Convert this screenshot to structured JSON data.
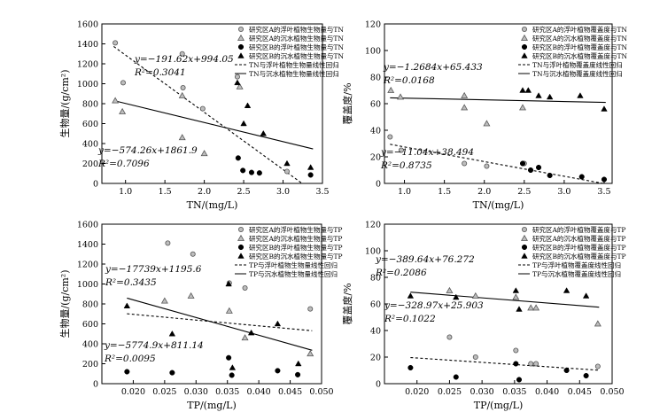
{
  "chart_data": [
    {
      "type": "scatter",
      "xlabel": "TN/(mg/L)",
      "ylabel": "生物量/(g/cm²)",
      "xlim": [
        0.7,
        3.5
      ],
      "ylim": [
        0,
        1600
      ],
      "xticks": [
        1.0,
        1.5,
        2.0,
        2.5,
        3.0,
        3.5
      ],
      "xtick_labels": [
        "1.0",
        "1.5",
        "2.0",
        "2.5",
        "3.0",
        "3.5"
      ],
      "yticks": [
        0,
        200,
        400,
        600,
        800,
        1000,
        1200,
        1400,
        1600
      ],
      "ytick_labels": [
        "0",
        "200",
        "400",
        "600",
        "800",
        "1000",
        "1200",
        "1400",
        "1600"
      ],
      "legend_position": "top-right",
      "series": [
        {
          "name": "研究区A的浮叶植物生物量与TN",
          "marker": "circle-gray",
          "x": [
            0.87,
            0.97,
            1.72,
            1.73,
            1.98,
            2.42,
            3.05
          ],
          "y": [
            1410,
            1010,
            1300,
            960,
            750,
            1070,
            120
          ]
        },
        {
          "name": "研究区A的沉水植物生物量与TN",
          "marker": "triangle-gray",
          "x": [
            0.87,
            0.96,
            1.72,
            1.72,
            2.0,
            2.45
          ],
          "y": [
            830,
            720,
            880,
            460,
            300,
            970
          ]
        },
        {
          "name": "研究区B的浮叶植物生物量与TN",
          "marker": "circle-black",
          "x": [
            2.43,
            2.49,
            2.6,
            2.7,
            3.35
          ],
          "y": [
            255,
            130,
            110,
            105,
            85
          ]
        },
        {
          "name": "研究区B的沉水植物生物量与TN",
          "marker": "triangle-black",
          "x": [
            2.42,
            2.5,
            2.55,
            2.75,
            3.05,
            3.35
          ],
          "y": [
            1010,
            600,
            780,
            500,
            200,
            160
          ]
        }
      ],
      "fits": [
        {
          "name": "TN与浮叶植物生物量线性回归",
          "style": "dashed",
          "slope": -574.26,
          "intercept": 1861.9,
          "x_range": [
            0.85,
            3.28
          ],
          "equation": "y=−574.26x+1861.9",
          "r2": "R²=0.7096"
        },
        {
          "name": "TN与沉水植物生物量线性回归",
          "style": "solid",
          "slope": -191.62,
          "intercept": 994.05,
          "x_range": [
            0.85,
            3.38
          ],
          "equation": "y=−191.62x+994.05",
          "r2": "R²=0.3041"
        }
      ]
    },
    {
      "type": "scatter",
      "xlabel": "TN/(mg/L)",
      "ylabel": "覆盖度/%",
      "xlim": [
        0.75,
        3.6
      ],
      "ylim": [
        0,
        120
      ],
      "xticks": [
        1.0,
        1.5,
        2.0,
        2.5,
        3.0,
        3.5
      ],
      "xtick_labels": [
        "1.0",
        "1.5",
        "2.0",
        "2.5",
        "3.0",
        "3.5"
      ],
      "yticks": [
        0,
        20,
        40,
        60,
        80,
        100,
        120
      ],
      "ytick_labels": [
        "0",
        "20",
        "40",
        "60",
        "80",
        "100",
        "120"
      ],
      "legend_position": "top-right",
      "series": [
        {
          "name": "研究区A的浮叶植物覆盖度与TN",
          "marker": "circle-gray",
          "x": [
            0.82,
            0.96,
            1.75,
            2.03,
            2.5
          ],
          "y": [
            35,
            25,
            15,
            13,
            15
          ]
        },
        {
          "name": "研究区A的沉水植物覆盖度与TN",
          "marker": "triangle-gray",
          "x": [
            0.83,
            0.95,
            1.75,
            1.75,
            2.03,
            2.48
          ],
          "y": [
            70,
            65,
            66,
            57,
            45,
            57
          ]
        },
        {
          "name": "研究区B的浮叶植物覆盖度与TN",
          "marker": "circle-black",
          "x": [
            2.48,
            2.58,
            2.68,
            2.82,
            3.22,
            3.5
          ],
          "y": [
            15,
            10,
            12,
            6,
            5,
            3
          ]
        },
        {
          "name": "研究区B的沉水植物覆盖度与TN",
          "marker": "triangle-black",
          "x": [
            2.48,
            2.55,
            2.68,
            2.82,
            3.2,
            3.5
          ],
          "y": [
            70,
            70,
            66,
            65,
            66,
            56
          ]
        }
      ],
      "fits": [
        {
          "name": "TN与浮叶植物覆盖度线性回归",
          "style": "dashed",
          "slope": -11.04,
          "intercept": 38.494,
          "x_range": [
            0.82,
            3.52
          ],
          "equation": "y=−11.04x+38.494",
          "r2": "R²=0.8735"
        },
        {
          "name": "TN与沉水植物覆盖度线性回归",
          "style": "solid",
          "slope": -1.2684,
          "intercept": 65.433,
          "x_range": [
            0.82,
            3.52
          ],
          "equation": "y=−1.2684x+65.433",
          "r2": "R²=0.0168"
        }
      ]
    },
    {
      "type": "scatter",
      "xlabel": "TP/(mg/L)",
      "ylabel": "生物量/(g/cm²)",
      "xlim": [
        0.015,
        0.05
      ],
      "ylim": [
        0,
        1600
      ],
      "xticks": [
        0.02,
        0.025,
        0.03,
        0.035,
        0.04,
        0.045,
        0.05
      ],
      "xtick_labels": [
        "0.020",
        "0.025",
        "0.030",
        "0.035",
        "0.040",
        "0.045",
        "0.050"
      ],
      "yticks": [
        0,
        200,
        400,
        600,
        800,
        1000,
        1200,
        1400,
        1600
      ],
      "ytick_labels": [
        "0",
        "200",
        "400",
        "600",
        "800",
        "1000",
        "1200",
        "1400",
        "1600"
      ],
      "legend_position": "top-right",
      "series": [
        {
          "name": "研究区A的浮叶植物生物量与TP",
          "marker": "circle-gray",
          "x": [
            0.0255,
            0.0295,
            0.0353,
            0.0378,
            0.0482
          ],
          "y": [
            1410,
            1300,
            1010,
            960,
            750
          ]
        },
        {
          "name": "研究区A的沉水植物生物量与TP",
          "marker": "triangle-gray",
          "x": [
            0.025,
            0.0292,
            0.0353,
            0.0378,
            0.0482
          ],
          "y": [
            830,
            880,
            730,
            460,
            300
          ]
        },
        {
          "name": "研究区B的浮叶植物生物量与TP",
          "marker": "circle-black",
          "x": [
            0.019,
            0.0262,
            0.0352,
            0.0357,
            0.043,
            0.0462
          ],
          "y": [
            120,
            110,
            260,
            85,
            130,
            90
          ]
        },
        {
          "name": "研究区B的沉水植物生物量与TP",
          "marker": "triangle-black",
          "x": [
            0.019,
            0.0262,
            0.0352,
            0.0358,
            0.0388,
            0.043,
            0.0463
          ],
          "y": [
            780,
            500,
            1000,
            160,
            510,
            600,
            200
          ]
        }
      ],
      "fits": [
        {
          "name": "TP与浮叶植物生物量线性回归",
          "style": "dashed",
          "slope": -5774.9,
          "intercept": 811.14,
          "x_range": [
            0.019,
            0.0485
          ],
          "equation": "y=−5774.9x+811.14",
          "r2": "R²=0.0095"
        },
        {
          "name": "TP与沉水植物生物量线性回归",
          "style": "solid",
          "slope": -17739,
          "intercept": 1195.6,
          "x_range": [
            0.019,
            0.0485
          ],
          "equation": "y=−17739x+1195.6",
          "r2": "R²=0.3435"
        }
      ]
    },
    {
      "type": "scatter",
      "xlabel": "TP/(mg/L)",
      "ylabel": "覆盖度/%",
      "xlim": [
        0.015,
        0.05
      ],
      "ylim": [
        0,
        120
      ],
      "xticks": [
        0.02,
        0.025,
        0.03,
        0.035,
        0.04,
        0.045,
        0.05
      ],
      "xtick_labels": [
        "0.020",
        "0.025",
        "0.030",
        "0.035",
        "0.040",
        "0.045",
        "0.050"
      ],
      "yticks": [
        0,
        20,
        40,
        60,
        80,
        100,
        120
      ],
      "ytick_labels": [
        "0",
        "20",
        "40",
        "60",
        "80",
        "100",
        "120"
      ],
      "legend_position": "top-right",
      "series": [
        {
          "name": "研究区A的浮叶植物覆盖度与TP",
          "marker": "circle-gray",
          "x": [
            0.025,
            0.029,
            0.0352,
            0.0375,
            0.0383,
            0.0478
          ],
          "y": [
            35,
            20,
            25,
            15,
            15,
            13
          ]
        },
        {
          "name": "研究区A的沉水植物覆盖度与TP",
          "marker": "triangle-gray",
          "x": [
            0.025,
            0.029,
            0.0352,
            0.0375,
            0.0383,
            0.0478
          ],
          "y": [
            70,
            66,
            65,
            57,
            57,
            45
          ]
        },
        {
          "name": "研究区B的浮叶植物覆盖度与TP",
          "marker": "circle-black",
          "x": [
            0.019,
            0.026,
            0.0352,
            0.0357,
            0.043,
            0.046
          ],
          "y": [
            12,
            5,
            15,
            3,
            10,
            6
          ]
        },
        {
          "name": "研究区B的沉水植物覆盖度与TP",
          "marker": "triangle-black",
          "x": [
            0.019,
            0.026,
            0.0352,
            0.0357,
            0.043,
            0.046
          ],
          "y": [
            66,
            65,
            70,
            56,
            70,
            66
          ]
        }
      ],
      "fits": [
        {
          "name": "TP与浮叶植物覆盖度线性回归",
          "style": "dashed",
          "slope": -328.97,
          "intercept": 25.903,
          "x_range": [
            0.019,
            0.048
          ],
          "equation": "y=−328.97x+25.903",
          "r2": "R²=0.1022"
        },
        {
          "name": "TP与沉水植物覆盖度线性回归",
          "style": "solid",
          "slope": -389.64,
          "intercept": 76.272,
          "x_range": [
            0.019,
            0.048
          ],
          "equation": "y=−389.64x+76.272",
          "r2": "R²=0.2086"
        }
      ]
    }
  ]
}
